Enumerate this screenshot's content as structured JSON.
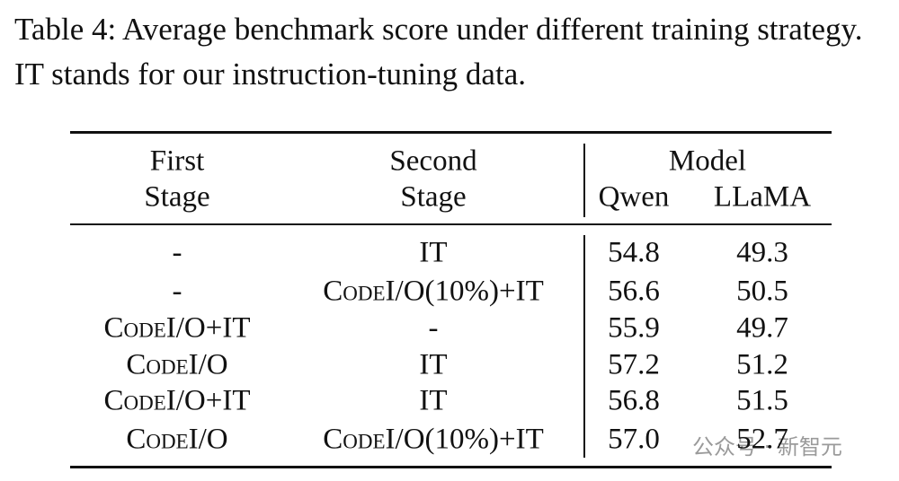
{
  "caption": "Table 4: Average benchmark score under different training strategy. IT stands for our instruction-tuning data.",
  "table": {
    "header": {
      "first_stage": [
        "First",
        "Stage"
      ],
      "second_stage": [
        "Second",
        "Stage"
      ],
      "group": "Model",
      "models": [
        "Qwen",
        "LLaMA"
      ]
    },
    "rows": [
      [
        "-",
        "IT",
        "54.8",
        "49.3"
      ],
      [
        "-",
        "CodeI/O(10%)+IT",
        "56.6",
        "50.5"
      ],
      [
        "CodeI/O+IT",
        "-",
        "55.9",
        "49.7"
      ],
      [
        "CodeI/O",
        "IT",
        "57.2",
        "51.2"
      ],
      [
        "CodeI/O+IT",
        "IT",
        "56.8",
        "51.5"
      ],
      [
        "CodeI/O",
        "CodeI/O(10%)+IT",
        "57.0",
        "52.7"
      ]
    ]
  },
  "watermark": "公众号 · 新智元"
}
